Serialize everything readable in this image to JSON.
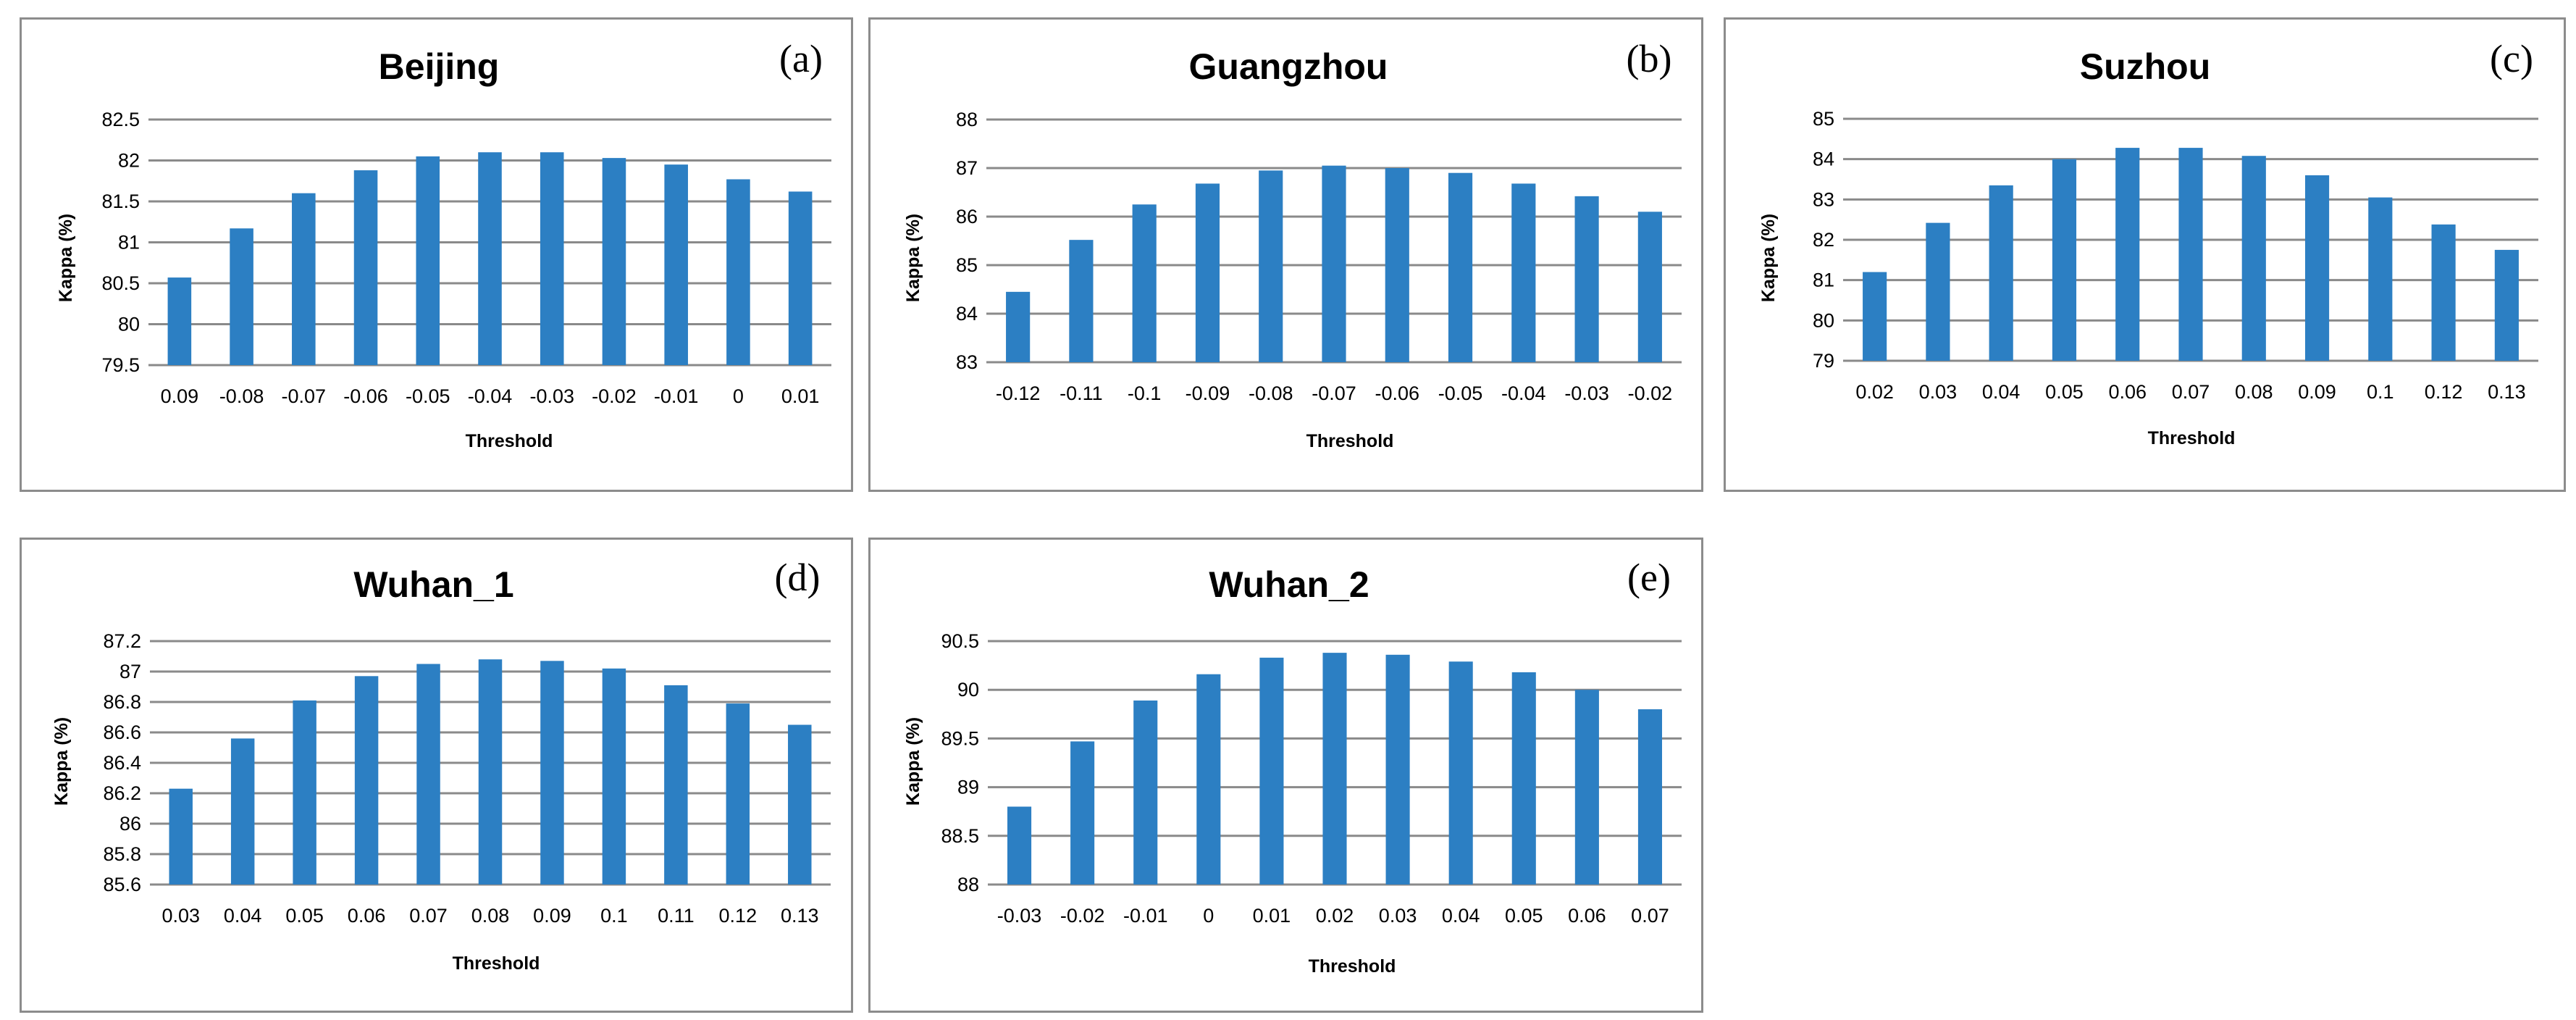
{
  "chart_data": [
    {
      "type": "bar",
      "title": "Beijing",
      "panel_label": "(a)",
      "xlabel": "Threshold",
      "ylabel": "Kappa (%)",
      "categories": [
        "0.09",
        "-0.08",
        "-0.07",
        "-0.06",
        "-0.05",
        "-0.04",
        "-0.03",
        "-0.02",
        "-0.01",
        "0",
        "0.01"
      ],
      "values": [
        80.57,
        81.17,
        81.6,
        81.88,
        82.05,
        82.1,
        82.1,
        82.03,
        81.95,
        81.77,
        81.62
      ],
      "ylim": [
        79.5,
        82.5
      ],
      "yticks": [
        "79.5",
        "80",
        "80.5",
        "81",
        "81.5",
        "82",
        "82.5"
      ],
      "grid": true,
      "bar_color": "#2c7fc3"
    },
    {
      "type": "bar",
      "title": "Guangzhou",
      "panel_label": "(b)",
      "xlabel": "Threshold",
      "ylabel": "Kappa (%)",
      "categories": [
        "-0.12",
        "-0.11",
        "-0.1",
        "-0.09",
        "-0.08",
        "-0.07",
        "-0.06",
        "-0.05",
        "-0.04",
        "-0.03",
        "-0.02"
      ],
      "values": [
        84.45,
        85.52,
        86.25,
        86.68,
        86.95,
        87.05,
        87.0,
        86.9,
        86.68,
        86.42,
        86.1
      ],
      "ylim": [
        83,
        88
      ],
      "yticks": [
        "83",
        "84",
        "85",
        "86",
        "87",
        "88"
      ],
      "grid": true,
      "bar_color": "#2c7fc3"
    },
    {
      "type": "bar",
      "title": "Suzhou",
      "panel_label": "(c)",
      "xlabel": "Threshold",
      "ylabel": "Kappa (%)",
      "categories": [
        "0.02",
        "0.03",
        "0.04",
        "0.05",
        "0.06",
        "0.07",
        "0.08",
        "0.09",
        "0.1",
        "0.12",
        "0.13"
      ],
      "values": [
        81.2,
        82.42,
        83.35,
        84.0,
        84.28,
        84.28,
        84.08,
        83.6,
        83.05,
        82.38,
        81.75
      ],
      "ylim": [
        79,
        85
      ],
      "yticks": [
        "79",
        "80",
        "81",
        "82",
        "83",
        "84",
        "85"
      ],
      "grid": true,
      "bar_color": "#2c7fc3"
    },
    {
      "type": "bar",
      "title": "Wuhan_1",
      "panel_label": "(d)",
      "xlabel": "Threshold",
      "ylabel": "Kappa (%)",
      "categories": [
        "0.03",
        "0.04",
        "0.05",
        "0.06",
        "0.07",
        "0.08",
        "0.09",
        "0.1",
        "0.11",
        "0.12",
        "0.13"
      ],
      "values": [
        86.23,
        86.56,
        86.81,
        86.97,
        87.05,
        87.08,
        87.07,
        87.02,
        86.91,
        86.79,
        86.65
      ],
      "ylim": [
        85.6,
        87.2
      ],
      "yticks": [
        "85.6",
        "85.8",
        "86",
        "86.2",
        "86.4",
        "86.6",
        "86.8",
        "87",
        "87.2"
      ],
      "grid": true,
      "bar_color": "#2c7fc3"
    },
    {
      "type": "bar",
      "title": "Wuhan_2",
      "panel_label": "(e)",
      "xlabel": "Threshold",
      "ylabel": "Kappa (%)",
      "categories": [
        "-0.03",
        "-0.02",
        "-0.01",
        "0",
        "0.01",
        "0.02",
        "0.03",
        "0.04",
        "0.05",
        "0.06",
        "0.07"
      ],
      "values": [
        88.8,
        89.47,
        89.89,
        90.16,
        90.33,
        90.38,
        90.36,
        90.29,
        90.18,
        90.0,
        89.8
      ],
      "ylim": [
        88,
        90.5
      ],
      "yticks": [
        "88",
        "88.5",
        "89",
        "89.5",
        "90",
        "90.5"
      ],
      "grid": true,
      "bar_color": "#2c7fc3"
    }
  ]
}
